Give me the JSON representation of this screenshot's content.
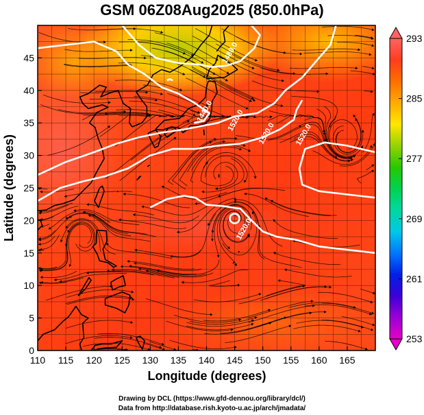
{
  "title": "GSM 06Z08Aug2025 (850.0hPa)",
  "xlabel": "Longitude (degrees)",
  "ylabel": "Latitude  (degrees)",
  "x_ticks": [
    "110",
    "115",
    "120",
    "125",
    "130",
    "135",
    "140",
    "145",
    "150",
    "155",
    "160",
    "165"
  ],
  "y_ticks": [
    "0",
    "5",
    "10",
    "15",
    "20",
    "25",
    "30",
    "35",
    "40",
    "45"
  ],
  "colorbar": {
    "min": 253,
    "max": 293,
    "tick_values": [
      253,
      261,
      269,
      277,
      285,
      293
    ],
    "tick_labels": [
      "253",
      "261",
      "269",
      "277",
      "285",
      "293"
    ],
    "colors": [
      "#e600c8",
      "#9a00d6",
      "#3c00d8",
      "#0020e6",
      "#0078ff",
      "#00c8e6",
      "#00d8a0",
      "#00d250",
      "#28c800",
      "#96d200",
      "#ffe600",
      "#ffaa00",
      "#ff6e00",
      "#ff3c1e",
      "#ff6464"
    ]
  },
  "contours": [
    {
      "label": "1440.0"
    },
    {
      "label": "1480.0"
    },
    {
      "label": "1520.0"
    },
    {
      "label": "1520.0"
    },
    {
      "label": "1520.0"
    },
    {
      "label": "1520.0"
    }
  ],
  "credits": {
    "drawing": "Drawing by DCL (https://www.gfd-dennou.org/library/dcl/)",
    "data": "Data from http://database.rish.kyoto-u.ac.jp/arch/jmadata/"
  }
}
